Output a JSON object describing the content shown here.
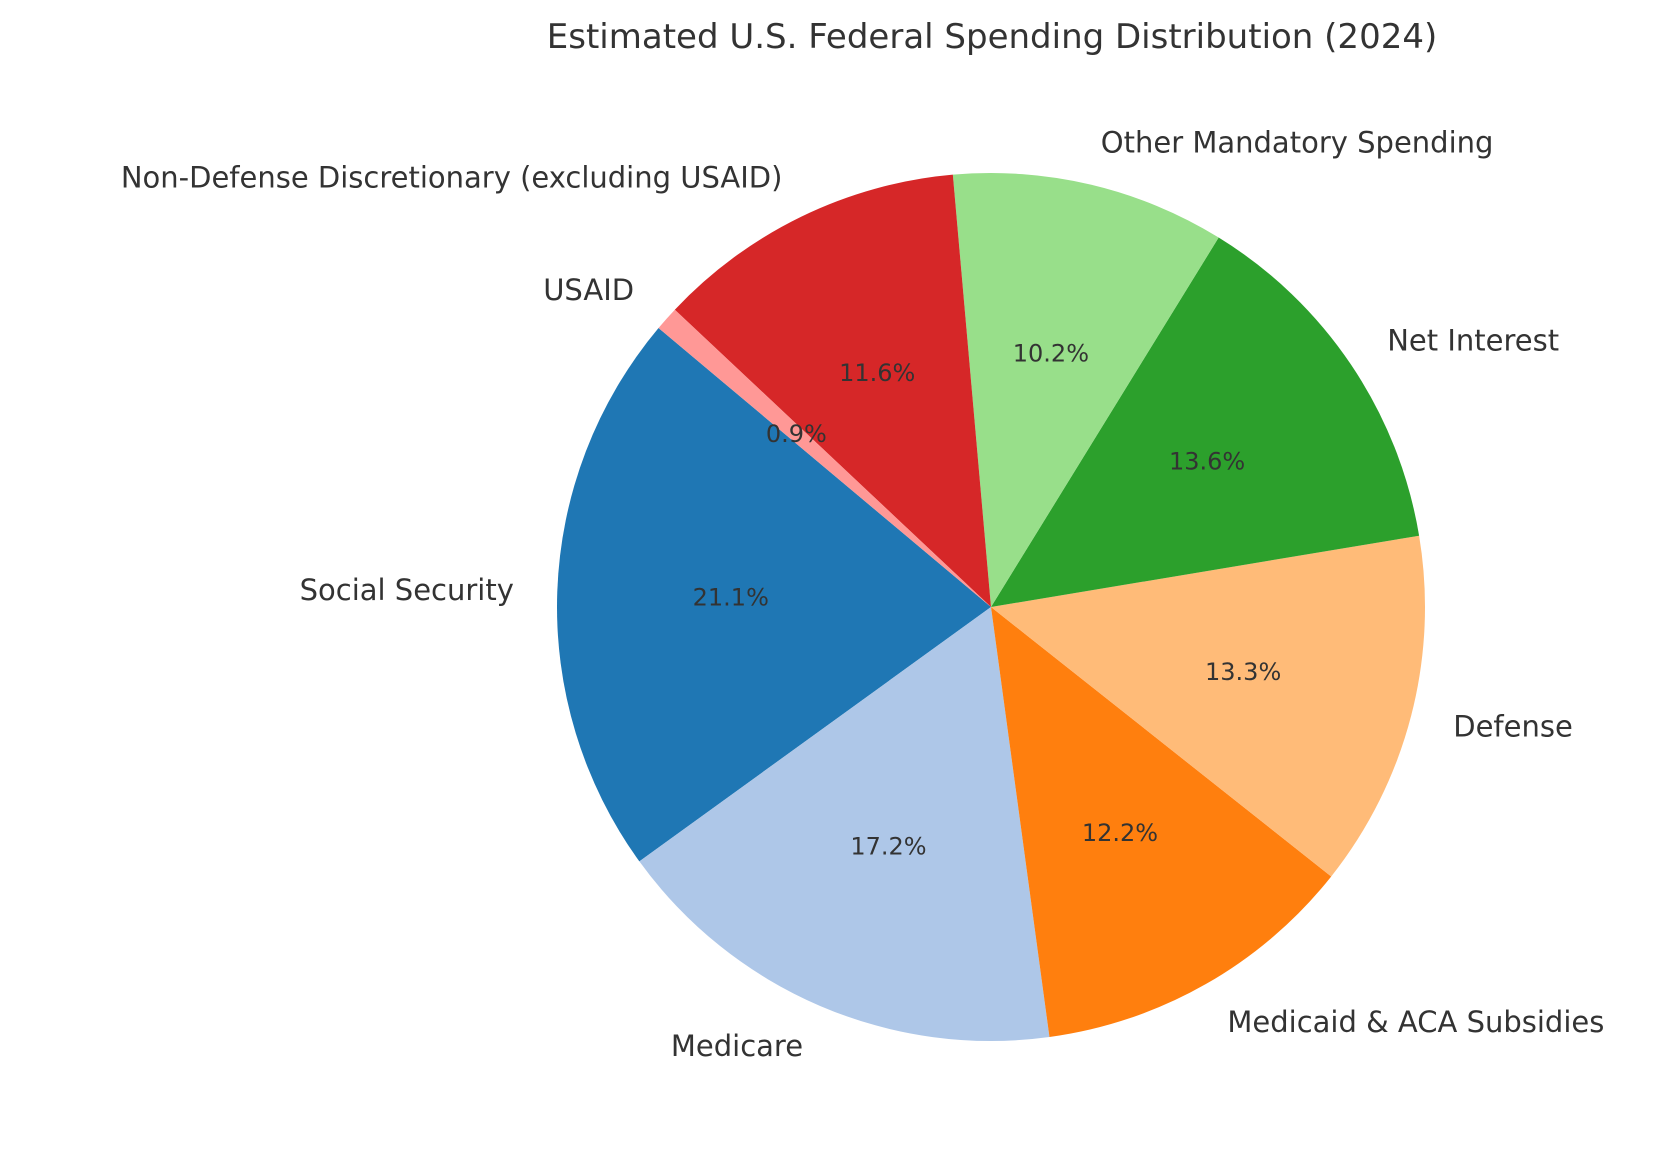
{
  "chart_data": {
    "type": "pie",
    "title": "Estimated U.S. Federal Spending Distribution (2024)",
    "start_angle_deg": 140,
    "direction": "counterclockwise",
    "slices": [
      {
        "label": "Social Security",
        "value": 21.1,
        "pct_text": "21.1%",
        "color": "#1f77b4"
      },
      {
        "label": "Medicare",
        "value": 17.2,
        "pct_text": "17.2%",
        "color": "#aec7e8"
      },
      {
        "label": "Medicaid & ACA Subsidies",
        "value": 12.2,
        "pct_text": "12.2%",
        "color": "#ff7f0e"
      },
      {
        "label": "Defense",
        "value": 13.3,
        "pct_text": "13.3%",
        "color": "#ffbb78"
      },
      {
        "label": "Net Interest",
        "value": 13.6,
        "pct_text": "13.6%",
        "color": "#2ca02c"
      },
      {
        "label": "Other Mandatory Spending",
        "value": 10.2,
        "pct_text": "10.2%",
        "color": "#98df8a"
      },
      {
        "label": "Non-Defense Discretionary (excluding USAID)",
        "value": 11.6,
        "pct_text": "11.6%",
        "color": "#d62728"
      },
      {
        "label": "USAID",
        "value": 0.9,
        "pct_text": "0.9%",
        "color": "#ff9896"
      }
    ]
  }
}
